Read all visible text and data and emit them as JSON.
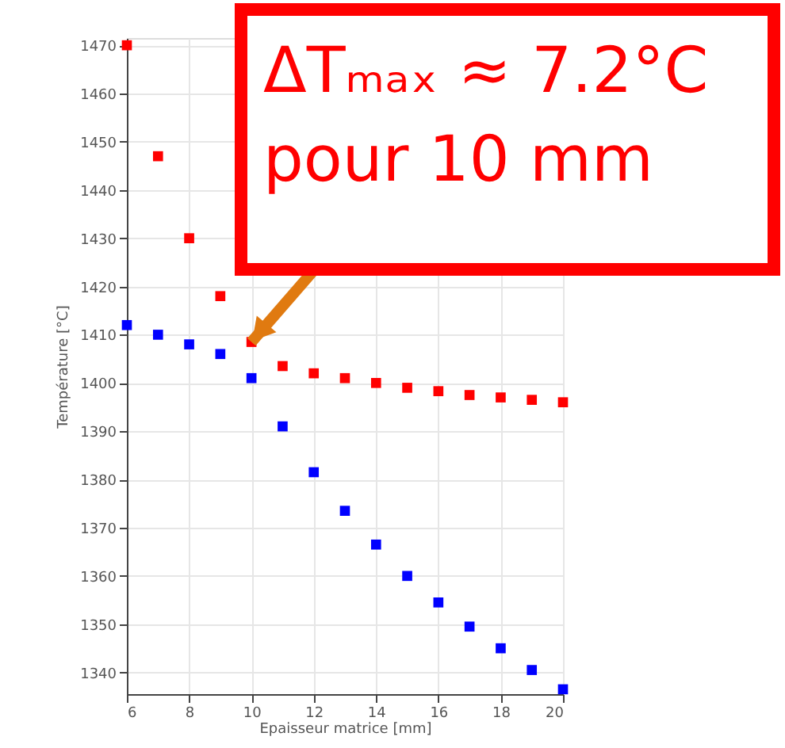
{
  "chart_data": {
    "type": "scatter",
    "xlabel": "Epaisseur matrice [mm]",
    "ylabel": "Température [°C]",
    "x": [
      6,
      7,
      8,
      9,
      10,
      11,
      12,
      13,
      14,
      15,
      16,
      17,
      18,
      19,
      20
    ],
    "series": [
      {
        "color": "#ff0000",
        "values": [
          1470,
          1447,
          1430,
          1418,
          1408.5,
          1403.5,
          1402,
          1401,
          1400,
          1399,
          1398.3,
          1397.5,
          1397,
          1396.5,
          1396
        ]
      },
      {
        "color": "#0000ff",
        "values": [
          1412,
          1410,
          1408,
          1406,
          1401,
          1391,
          1381.5,
          1373.5,
          1366.5,
          1360,
          1354.5,
          1349.5,
          1345,
          1340.5,
          1336.5
        ]
      }
    ],
    "xlim": [
      6,
      20
    ],
    "xticks": [
      6,
      8,
      10,
      12,
      14,
      16,
      18,
      20
    ],
    "ylim": [
      1335.5,
      1471.5
    ],
    "yticks": [
      1340,
      1350,
      1360,
      1370,
      1380,
      1390,
      1400,
      1410,
      1420,
      1430,
      1440,
      1450,
      1460,
      1470
    ],
    "grid": true,
    "marker": "square",
    "legend": false,
    "annotations": [
      {
        "text": "ΔTₘₐₓ ≈ 7.2°C\npour 10 mm",
        "x": 10,
        "y": 1408.5
      }
    ]
  }
}
